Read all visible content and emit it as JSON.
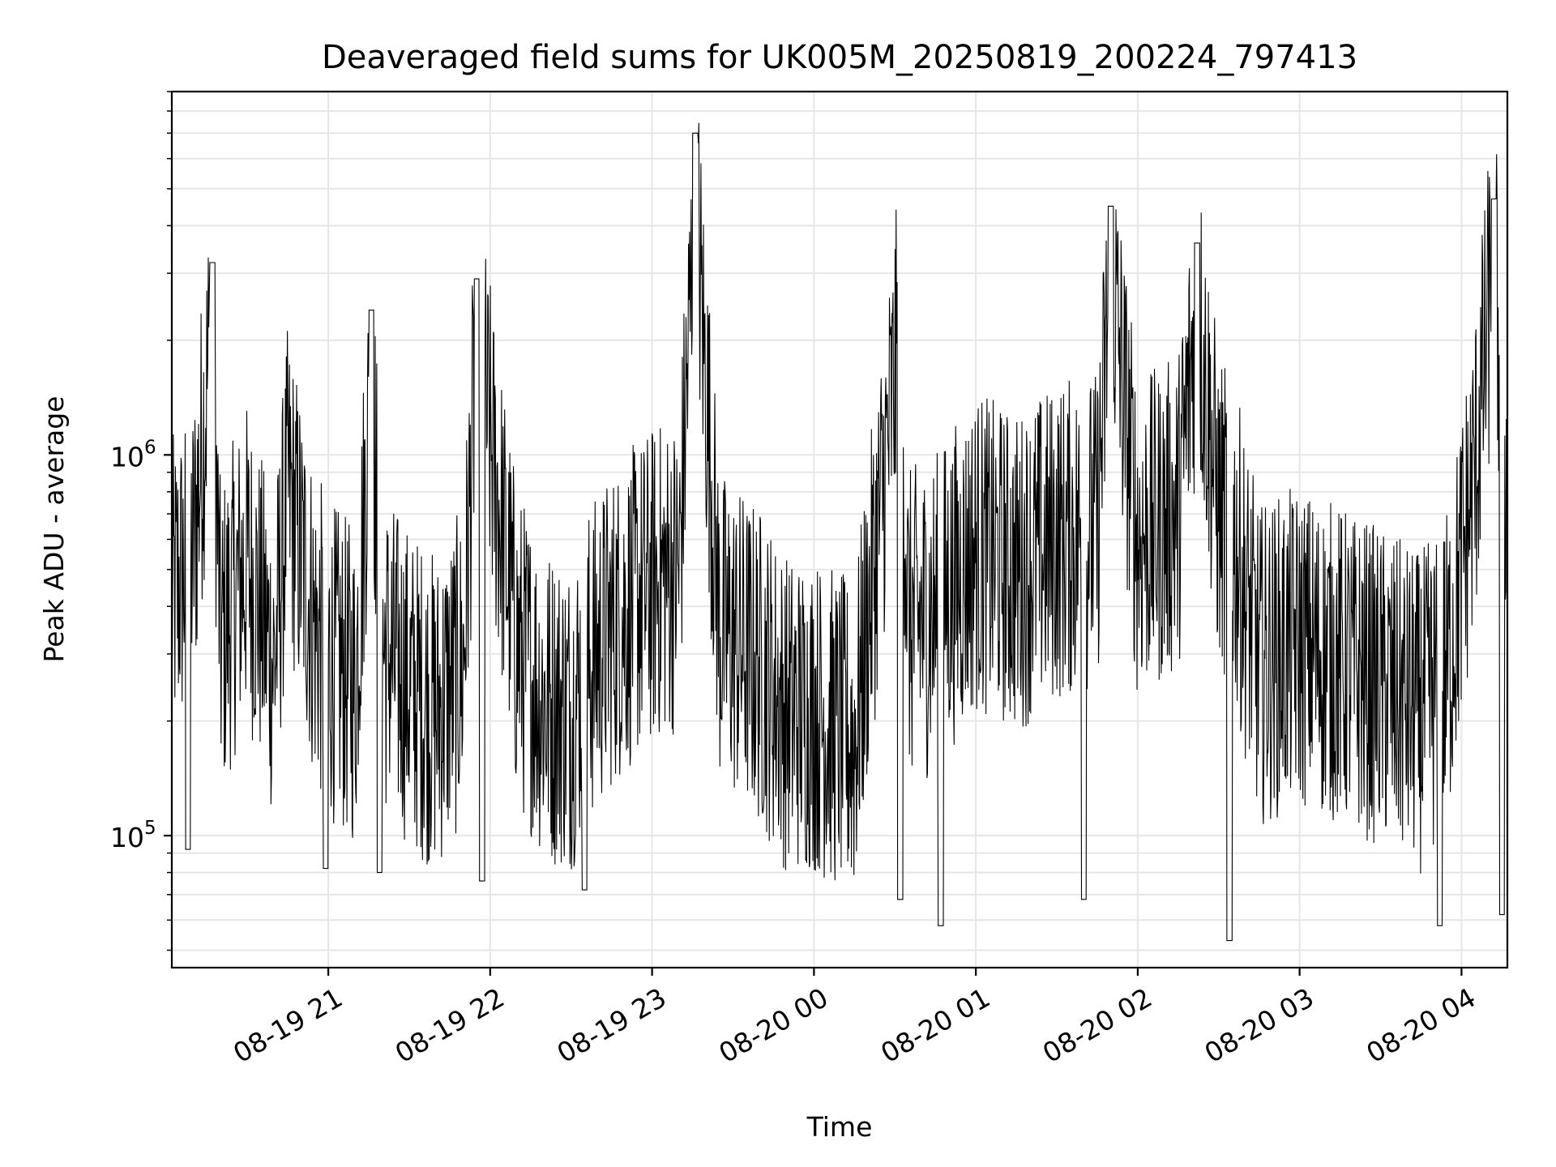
{
  "chart_data": {
    "type": "line",
    "title": "Deaveraged field sums for UK005M_20250819_200224_797413",
    "xlabel": "Time",
    "ylabel": "Peak ADU - average",
    "yscale": "log",
    "ylim": [
      45000,
      9000000
    ],
    "xlim": [
      "2025-08-19 20:02",
      "2025-08-20 04:17"
    ],
    "grid": true,
    "line_color": "#000000",
    "grid_color": "#e6e6e6",
    "xticks": [
      {
        "t": "2025-08-19 21:00",
        "label": "08-19 21"
      },
      {
        "t": "2025-08-19 22:00",
        "label": "08-19 22"
      },
      {
        "t": "2025-08-19 23:00",
        "label": "08-19 23"
      },
      {
        "t": "2025-08-20 00:00",
        "label": "08-20 00"
      },
      {
        "t": "2025-08-20 01:00",
        "label": "08-20 01"
      },
      {
        "t": "2025-08-20 02:00",
        "label": "08-20 02"
      },
      {
        "t": "2025-08-20 03:00",
        "label": "08-20 03"
      },
      {
        "t": "2025-08-20 04:00",
        "label": "08-20 04"
      }
    ],
    "yticks": [
      {
        "value": 100000,
        "base": "10",
        "exp": "5"
      },
      {
        "value": 1000000,
        "base": "10",
        "exp": "6"
      }
    ],
    "series": [
      {
        "x": [
          "2025-08-19 20:02",
          "2025-08-19 20:10",
          "2025-08-19 20:17",
          "2025-08-19 20:20",
          "2025-08-19 20:25",
          "2025-08-19 20:30",
          "2025-08-19 20:40",
          "2025-08-19 20:45",
          "2025-08-19 20:55",
          "2025-08-19 21:00",
          "2025-08-19 21:10",
          "2025-08-19 21:16",
          "2025-08-19 21:20",
          "2025-08-19 21:30",
          "2025-08-19 21:40",
          "2025-08-19 21:50",
          "2025-08-19 21:55",
          "2025-08-19 22:10",
          "2025-08-19 22:20",
          "2025-08-19 22:30",
          "2025-08-19 22:35",
          "2025-08-19 22:45",
          "2025-08-19 23:00",
          "2025-08-19 23:10",
          "2025-08-19 23:16",
          "2025-08-19 23:25",
          "2025-08-19 23:40",
          "2025-08-19 23:50",
          "2025-08-20 00:00",
          "2025-08-20 00:15",
          "2025-08-20 00:32",
          "2025-08-20 00:35",
          "2025-08-20 00:45",
          "2025-08-20 01:00",
          "2025-08-20 01:15",
          "2025-08-20 01:30",
          "2025-08-20 01:45",
          "2025-08-20 01:50",
          "2025-08-20 02:00",
          "2025-08-20 02:15",
          "2025-08-20 02:22",
          "2025-08-20 02:30",
          "2025-08-20 02:35",
          "2025-08-20 02:45",
          "2025-08-20 03:00",
          "2025-08-20 03:15",
          "2025-08-20 03:30",
          "2025-08-20 03:45",
          "2025-08-20 03:55",
          "2025-08-20 04:05",
          "2025-08-20 04:12",
          "2025-08-20 04:17"
        ],
        "y": [
          600000,
          800000,
          3200000,
          450000,
          600000,
          750000,
          400000,
          1200000,
          500000,
          420000,
          350000,
          2400000,
          450000,
          350000,
          300000,
          400000,
          2900000,
          450000,
          320000,
          300000,
          380000,
          500000,
          650000,
          700000,
          7000000,
          500000,
          400000,
          300000,
          300000,
          250000,
          3000000,
          500000,
          550000,
          800000,
          700000,
          850000,
          900000,
          4500000,
          850000,
          1000000,
          3600000,
          1000000,
          900000,
          400000,
          450000,
          400000,
          350000,
          300000,
          400000,
          1300000,
          4700000,
          1100000
        ],
        "lows": [
          {
            "x": "2025-08-19 20:08",
            "y": 92000
          },
          {
            "x": "2025-08-19 20:59",
            "y": 82000
          },
          {
            "x": "2025-08-19 21:19",
            "y": 80000
          },
          {
            "x": "2025-08-19 21:57",
            "y": 76000
          },
          {
            "x": "2025-08-19 22:35",
            "y": 72000
          },
          {
            "x": "2025-08-20 00:32",
            "y": 68000
          },
          {
            "x": "2025-08-20 00:47",
            "y": 58000
          },
          {
            "x": "2025-08-20 01:40",
            "y": 68000
          },
          {
            "x": "2025-08-20 02:34",
            "y": 53000
          },
          {
            "x": "2025-08-20 03:52",
            "y": 58000
          },
          {
            "x": "2025-08-20 04:15",
            "y": 62000
          }
        ]
      }
    ]
  }
}
